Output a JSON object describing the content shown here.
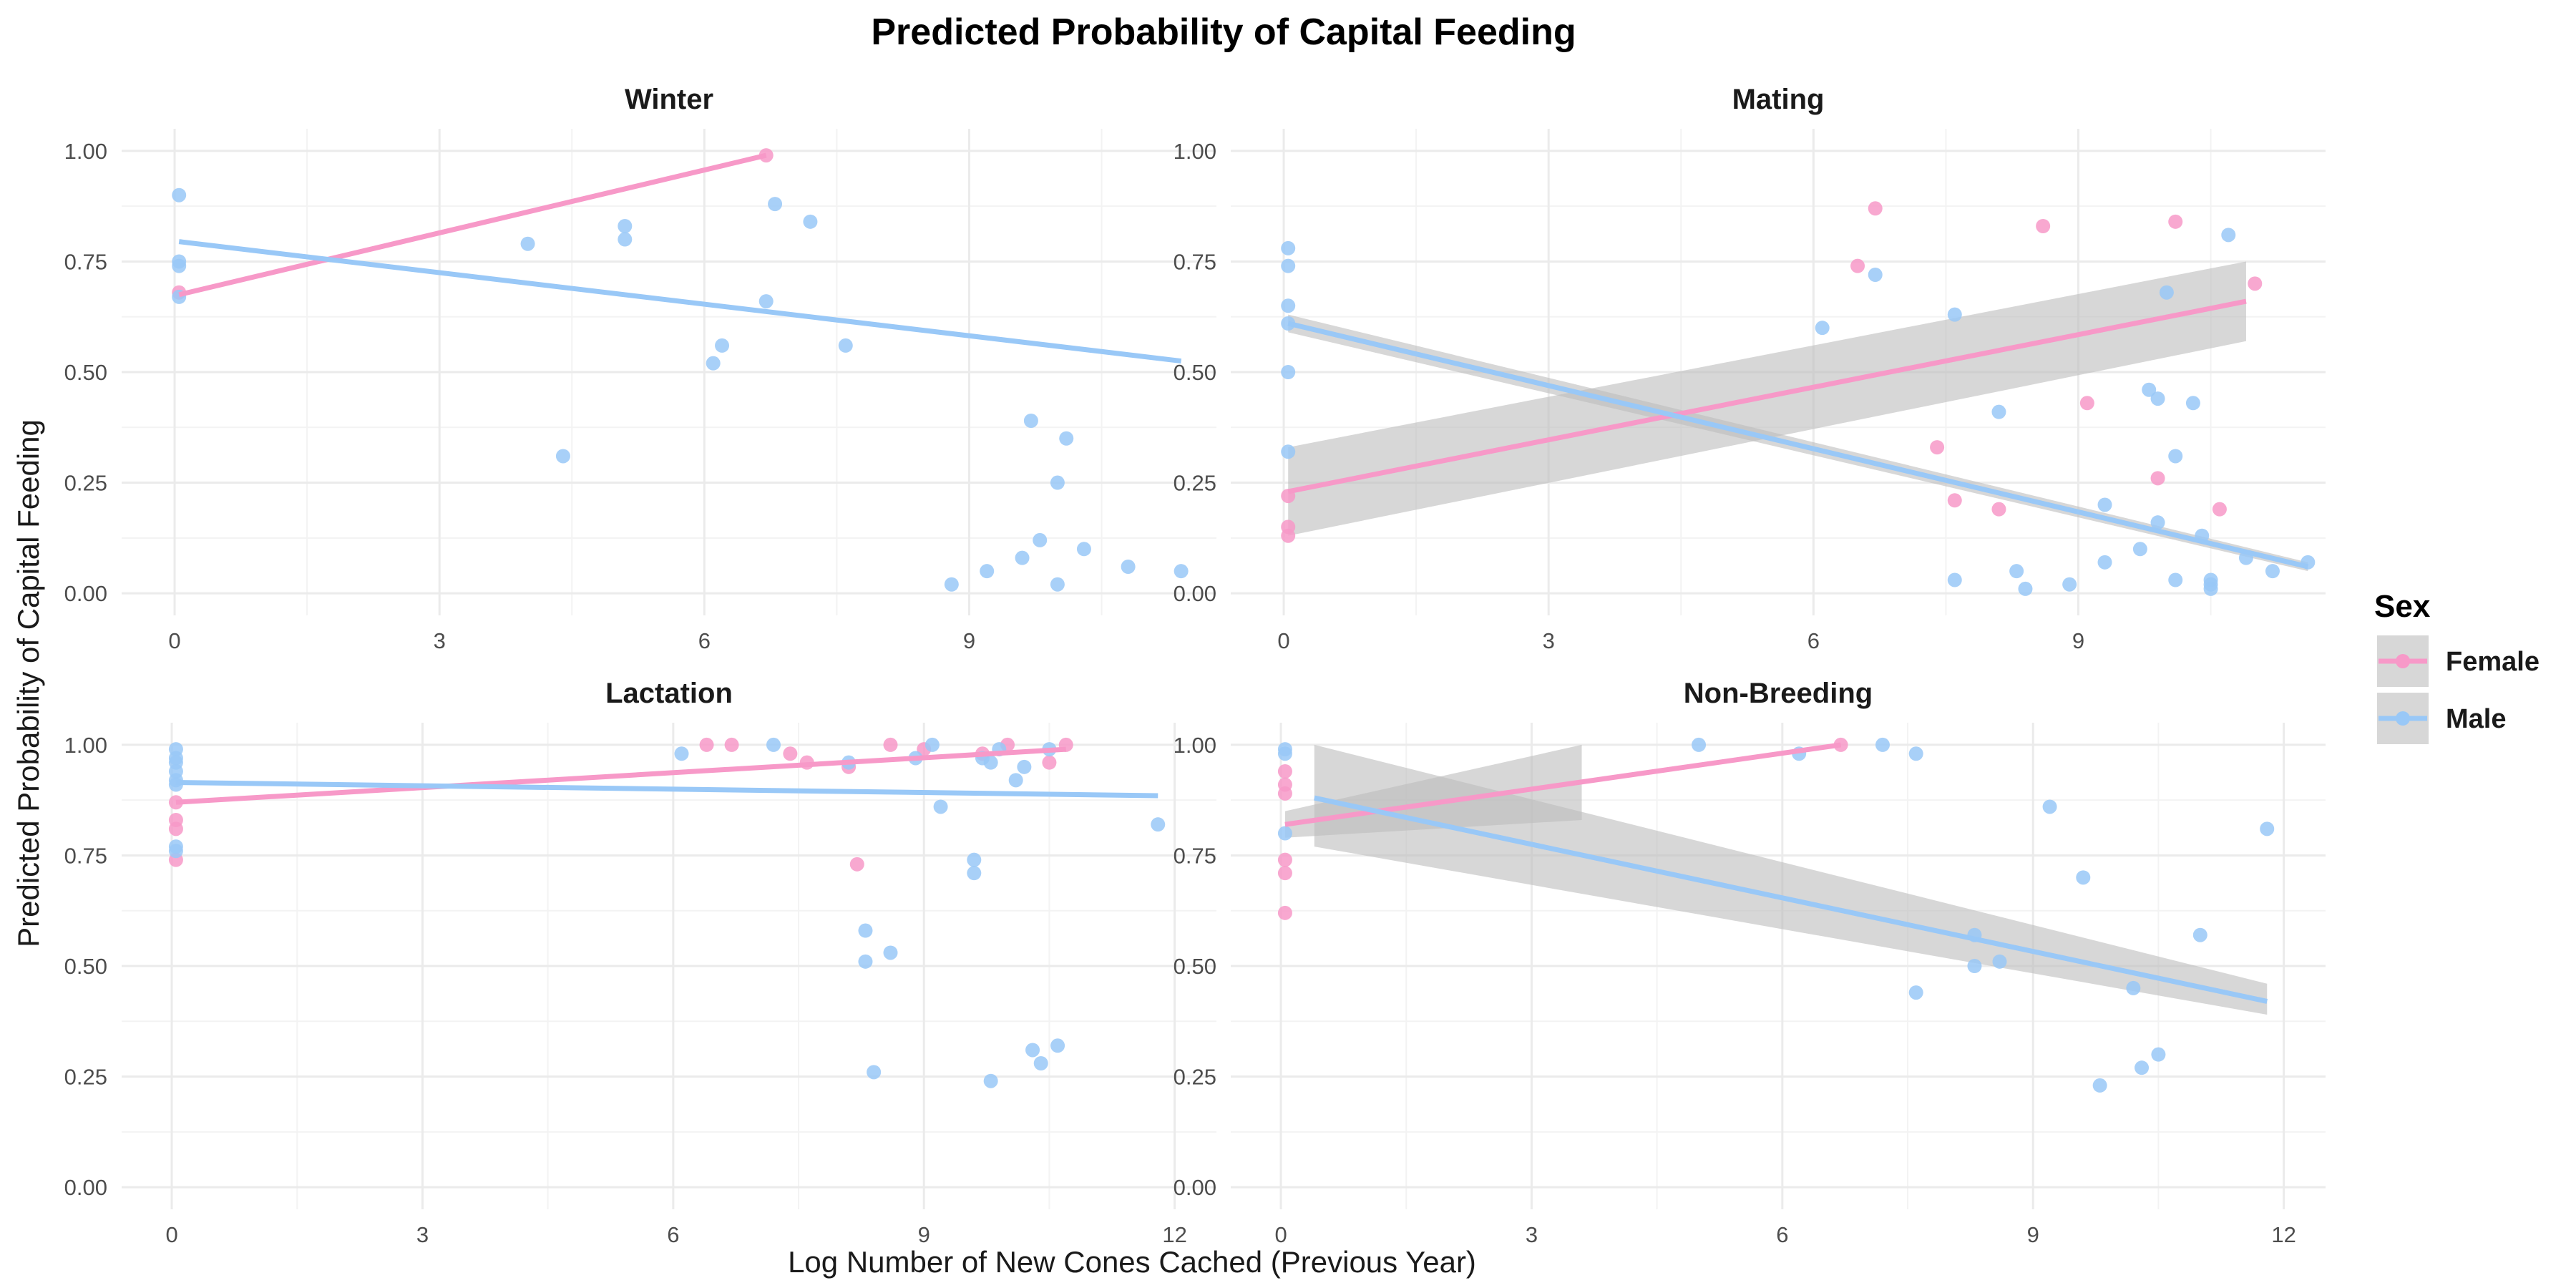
{
  "colors": {
    "Female": "#f799c8",
    "Male": "#99c8f7",
    "band": "#bdbdbd"
  },
  "chart_data": {
    "type": "scatter",
    "title": "Predicted Probability of Capital Feeding",
    "xlabel": "Log Number of New Cones Cached (Previous Year)",
    "ylabel": "Predicted Probability of Capital Feeding",
    "grid": true,
    "legend": {
      "title": "Sex",
      "position": "right",
      "entries": [
        "Female",
        "Male"
      ]
    },
    "panels": [
      {
        "title": "Winter",
        "xlim": [
          -0.6,
          11.8
        ],
        "ylim": [
          -0.05,
          1.05
        ],
        "xticks": [
          0,
          3,
          6,
          9
        ],
        "yticks": [
          0,
          0.25,
          0.5,
          0.75,
          1
        ],
        "ytick_labels": [
          "0.00",
          "0.25",
          "0.50",
          "0.75",
          "1.00"
        ],
        "series": [
          {
            "name": "Female",
            "points": [
              [
                0.05,
                0.68
              ],
              [
                6.7,
                0.99
              ]
            ],
            "fit": [
              [
                0.05,
                0.675
              ],
              [
                6.7,
                0.99
              ]
            ]
          },
          {
            "name": "Male",
            "points": [
              [
                0.05,
                0.9
              ],
              [
                0.05,
                0.75
              ],
              [
                0.05,
                0.74
              ],
              [
                0.05,
                0.67
              ],
              [
                4.0,
                0.79
              ],
              [
                5.1,
                0.83
              ],
              [
                5.1,
                0.8
              ],
              [
                4.4,
                0.31
              ],
              [
                6.1,
                0.52
              ],
              [
                6.2,
                0.56
              ],
              [
                6.7,
                0.66
              ],
              [
                6.8,
                0.88
              ],
              [
                7.2,
                0.84
              ],
              [
                7.6,
                0.56
              ],
              [
                8.8,
                0.02
              ],
              [
                9.2,
                0.05
              ],
              [
                9.6,
                0.08
              ],
              [
                9.7,
                0.39
              ],
              [
                9.8,
                0.12
              ],
              [
                10.0,
                0.02
              ],
              [
                10.0,
                0.25
              ],
              [
                10.1,
                0.35
              ],
              [
                10.3,
                0.1
              ],
              [
                10.8,
                0.06
              ],
              [
                11.4,
                0.05
              ]
            ],
            "fit": [
              [
                0.05,
                0.795
              ],
              [
                11.4,
                0.525
              ]
            ]
          }
        ]
      },
      {
        "title": "Mating",
        "xlim": [
          -0.6,
          11.8
        ],
        "ylim": [
          -0.05,
          1.05
        ],
        "xticks": [
          0,
          3,
          6,
          9
        ],
        "yticks": [
          0,
          0.25,
          0.5,
          0.75,
          1
        ],
        "ytick_labels": [
          "0.00",
          "0.25",
          "0.50",
          "0.75",
          "1.00"
        ],
        "series": [
          {
            "name": "Female",
            "points": [
              [
                0.05,
                0.22
              ],
              [
                0.05,
                0.15
              ],
              [
                0.05,
                0.13
              ],
              [
                6.5,
                0.74
              ],
              [
                6.7,
                0.87
              ],
              [
                7.4,
                0.33
              ],
              [
                7.6,
                0.21
              ],
              [
                8.1,
                0.19
              ],
              [
                8.6,
                0.83
              ],
              [
                9.1,
                0.43
              ],
              [
                9.9,
                0.26
              ],
              [
                10.1,
                0.84
              ],
              [
                10.6,
                0.19
              ],
              [
                11.0,
                0.7
              ]
            ],
            "fit": [
              [
                0.05,
                0.23
              ],
              [
                10.9,
                0.66
              ]
            ],
            "band": [
              [
                0.05,
                0.13,
                0.33
              ],
              [
                10.9,
                0.57,
                0.75
              ]
            ]
          },
          {
            "name": "Male",
            "points": [
              [
                0.05,
                0.78
              ],
              [
                0.05,
                0.74
              ],
              [
                0.05,
                0.65
              ],
              [
                0.05,
                0.61
              ],
              [
                0.05,
                0.5
              ],
              [
                0.05,
                0.32
              ],
              [
                6.1,
                0.6
              ],
              [
                6.7,
                0.72
              ],
              [
                7.6,
                0.63
              ],
              [
                7.6,
                0.03
              ],
              [
                8.1,
                0.41
              ],
              [
                8.3,
                0.05
              ],
              [
                8.4,
                0.01
              ],
              [
                8.9,
                0.02
              ],
              [
                9.3,
                0.07
              ],
              [
                9.3,
                0.2
              ],
              [
                9.7,
                0.1
              ],
              [
                9.8,
                0.46
              ],
              [
                9.9,
                0.16
              ],
              [
                9.9,
                0.44
              ],
              [
                10.0,
                0.68
              ],
              [
                10.1,
                0.03
              ],
              [
                10.1,
                0.31
              ],
              [
                10.3,
                0.43
              ],
              [
                10.4,
                0.13
              ],
              [
                10.5,
                0.03
              ],
              [
                10.5,
                0.02
              ],
              [
                10.5,
                0.01
              ],
              [
                10.7,
                0.81
              ],
              [
                10.9,
                0.08
              ],
              [
                11.2,
                0.05
              ],
              [
                11.6,
                0.07
              ]
            ],
            "fit": [
              [
                0.05,
                0.61
              ],
              [
                11.6,
                0.06
              ]
            ],
            "band": [
              [
                0.05,
                0.59,
                0.63
              ],
              [
                11.6,
                0.05,
                0.07
              ]
            ]
          }
        ]
      },
      {
        "title": "Lactation",
        "xlim": [
          -0.6,
          12.5
        ],
        "ylim": [
          -0.05,
          1.05
        ],
        "xticks": [
          0,
          3,
          6,
          9,
          12
        ],
        "yticks": [
          0,
          0.25,
          0.5,
          0.75,
          1
        ],
        "ytick_labels": [
          "0.00",
          "0.25",
          "0.50",
          "0.75",
          "1.00"
        ],
        "series": [
          {
            "name": "Female",
            "points": [
              [
                0.05,
                0.87
              ],
              [
                0.05,
                0.83
              ],
              [
                0.05,
                0.81
              ],
              [
                0.05,
                0.74
              ],
              [
                6.4,
                1.0
              ],
              [
                6.7,
                1.0
              ],
              [
                7.4,
                0.98
              ],
              [
                7.6,
                0.96
              ],
              [
                8.1,
                0.95
              ],
              [
                8.2,
                0.73
              ],
              [
                8.6,
                1.0
              ],
              [
                9.0,
                0.99
              ],
              [
                9.7,
                0.98
              ],
              [
                10.0,
                1.0
              ],
              [
                10.5,
                0.96
              ],
              [
                10.7,
                1.0
              ]
            ],
            "fit": [
              [
                0.05,
                0.87
              ],
              [
                10.7,
                0.99
              ]
            ]
          },
          {
            "name": "Male",
            "points": [
              [
                0.05,
                0.99
              ],
              [
                0.05,
                0.97
              ],
              [
                0.05,
                0.96
              ],
              [
                0.05,
                0.94
              ],
              [
                0.05,
                0.92
              ],
              [
                0.05,
                0.91
              ],
              [
                0.05,
                0.77
              ],
              [
                0.05,
                0.76
              ],
              [
                6.1,
                0.98
              ],
              [
                7.2,
                1.0
              ],
              [
                8.1,
                0.96
              ],
              [
                8.3,
                0.58
              ],
              [
                8.3,
                0.51
              ],
              [
                8.4,
                0.26
              ],
              [
                8.6,
                0.53
              ],
              [
                8.9,
                0.97
              ],
              [
                9.1,
                1.0
              ],
              [
                9.2,
                0.86
              ],
              [
                9.6,
                0.74
              ],
              [
                9.6,
                0.71
              ],
              [
                9.7,
                0.97
              ],
              [
                9.8,
                0.24
              ],
              [
                9.8,
                0.96
              ],
              [
                9.9,
                0.99
              ],
              [
                10.1,
                0.92
              ],
              [
                10.2,
                0.95
              ],
              [
                10.3,
                0.31
              ],
              [
                10.4,
                0.28
              ],
              [
                10.5,
                0.99
              ],
              [
                10.6,
                0.32
              ],
              [
                11.8,
                0.82
              ]
            ],
            "fit": [
              [
                0.05,
                0.915
              ],
              [
                11.8,
                0.885
              ]
            ]
          }
        ]
      },
      {
        "title": "Non-Breeding",
        "xlim": [
          -0.6,
          12.5
        ],
        "ylim": [
          -0.05,
          1.05
        ],
        "xticks": [
          0,
          3,
          6,
          9,
          12
        ],
        "yticks": [
          0,
          0.25,
          0.5,
          0.75,
          1
        ],
        "ytick_labels": [
          "0.00",
          "0.25",
          "0.50",
          "0.75",
          "1.00"
        ],
        "series": [
          {
            "name": "Female",
            "points": [
              [
                0.05,
                0.94
              ],
              [
                0.05,
                0.91
              ],
              [
                0.05,
                0.89
              ],
              [
                0.05,
                0.74
              ],
              [
                0.05,
                0.71
              ],
              [
                0.05,
                0.62
              ],
              [
                6.7,
                1.0
              ]
            ],
            "fit": [
              [
                0.05,
                0.82
              ],
              [
                6.7,
                1.0
              ]
            ],
            "band": [
              [
                0.05,
                0.79,
                0.85
              ],
              [
                3.6,
                0.83,
                1.0
              ]
            ]
          },
          {
            "name": "Male",
            "points": [
              [
                0.05,
                0.99
              ],
              [
                0.05,
                0.98
              ],
              [
                0.05,
                0.8
              ],
              [
                5.0,
                1.0
              ],
              [
                6.2,
                0.98
              ],
              [
                7.2,
                1.0
              ],
              [
                7.6,
                0.98
              ],
              [
                7.6,
                0.44
              ],
              [
                8.3,
                0.57
              ],
              [
                8.3,
                0.5
              ],
              [
                8.6,
                0.51
              ],
              [
                9.2,
                0.86
              ],
              [
                9.6,
                0.7
              ],
              [
                9.8,
                0.23
              ],
              [
                10.2,
                0.45
              ],
              [
                10.3,
                0.27
              ],
              [
                10.5,
                0.3
              ],
              [
                11.0,
                0.57
              ],
              [
                11.8,
                0.81
              ]
            ],
            "fit": [
              [
                0.4,
                0.88
              ],
              [
                11.8,
                0.42
              ]
            ],
            "band": [
              [
                0.4,
                0.77,
                1.0
              ],
              [
                11.8,
                0.39,
                0.46
              ]
            ]
          }
        ]
      }
    ]
  }
}
